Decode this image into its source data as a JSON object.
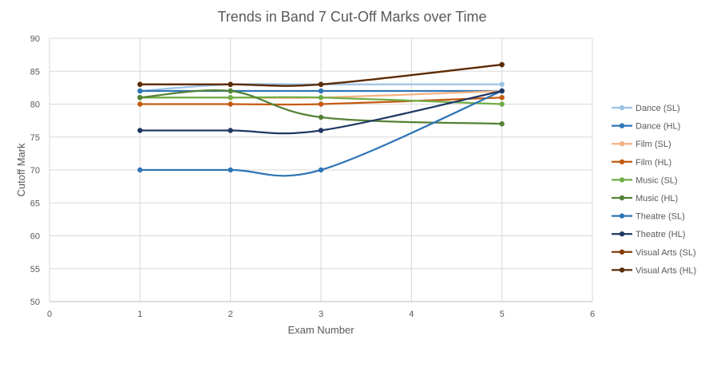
{
  "chart_data": {
    "type": "line",
    "title": "Trends in Band 7 Cut-Off Marks over Time",
    "xlabel": "Exam Number",
    "ylabel": "Cutoff Mark",
    "xlim": [
      0,
      6
    ],
    "ylim": [
      50,
      90
    ],
    "xticks": [
      0,
      1,
      2,
      3,
      4,
      5,
      6
    ],
    "yticks": [
      50,
      55,
      60,
      65,
      70,
      75,
      80,
      85,
      90
    ],
    "grid": true,
    "legend_position": "right",
    "smoothed": true,
    "x": [
      1,
      2,
      3,
      5
    ],
    "series": [
      {
        "name": "Dance (SL)",
        "color": "#9DC3E6",
        "values": [
          82,
          83,
          83,
          83
        ]
      },
      {
        "name": "Dance (HL)",
        "color": "#2E75B6",
        "values": [
          82,
          82,
          82,
          82
        ]
      },
      {
        "name": "Film (SL)",
        "color": "#F4B183",
        "values": [
          81,
          81,
          81,
          82
        ]
      },
      {
        "name": "Film (HL)",
        "color": "#C55A11",
        "values": [
          80,
          80,
          80,
          81
        ]
      },
      {
        "name": "Music (SL)",
        "color": "#70AD47",
        "values": [
          81,
          81,
          81,
          80
        ]
      },
      {
        "name": "Music (HL)",
        "color": "#548235",
        "values": [
          81,
          82,
          78,
          77
        ]
      },
      {
        "name": "Theatre (SL)",
        "color": "#2E75B6",
        "values": [
          70,
          70,
          70,
          82
        ]
      },
      {
        "name": "Theatre (HL)",
        "color": "#1F3864",
        "values": [
          76,
          76,
          76,
          82
        ]
      },
      {
        "name": "Visual Arts (SL)",
        "color": "#843C0C",
        "values": [
          83,
          83,
          83,
          86
        ]
      },
      {
        "name": "Visual Arts (HL)",
        "color": "#5B2C06",
        "values": [
          83,
          83,
          83,
          86
        ]
      }
    ]
  }
}
